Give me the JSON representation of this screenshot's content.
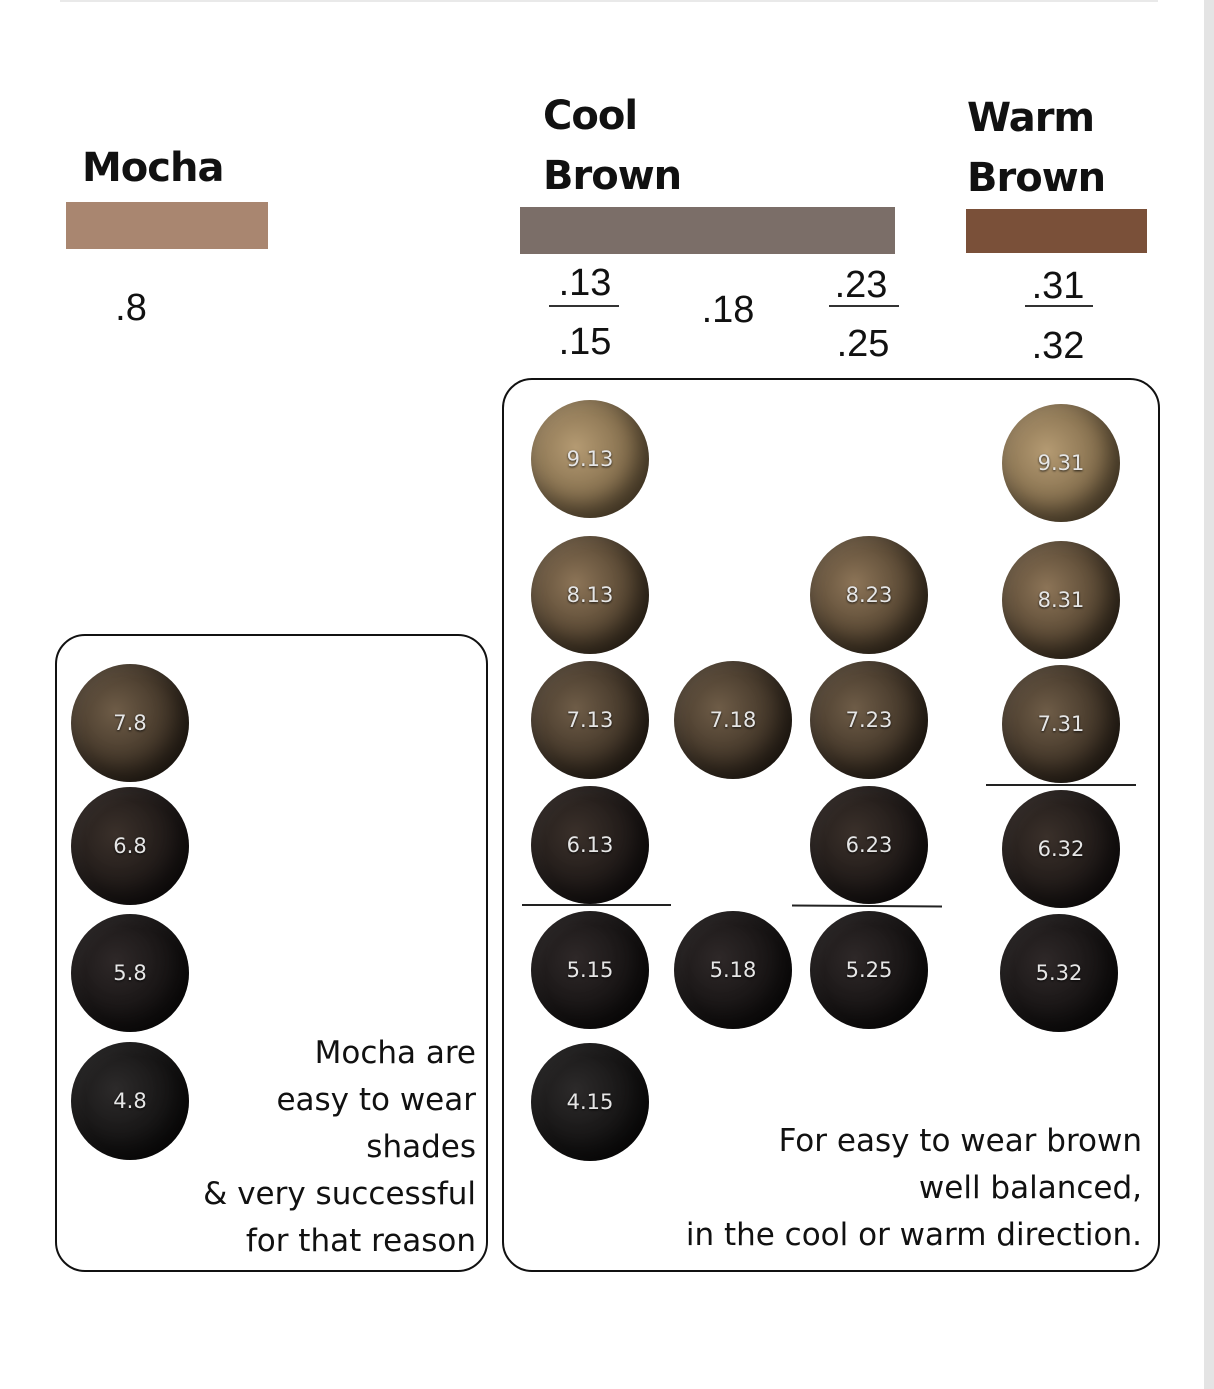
{
  "headers": {
    "mocha": "Mocha",
    "cool_line1": "Cool",
    "cool_line2": "Brown",
    "warm_line1": "Warm",
    "warm_line2": "Brown"
  },
  "colors": {
    "mocha": "#a98670",
    "cool": "#7b6e68",
    "warm": "#7a5039"
  },
  "codes": {
    "mocha": ".8",
    "cool_a_top": ".13",
    "cool_a_bottom": ".15",
    "cool_b": ".18",
    "cool_c_top": ".23",
    "cool_c_bottom": ".25",
    "warm_top": ".31",
    "warm_bottom": ".32"
  },
  "shades": {
    "mocha": [
      "7.8",
      "6.8",
      "5.8",
      "4.8"
    ],
    "cool_13_15": [
      "9.13",
      "8.13",
      "7.13",
      "6.13",
      "5.15",
      "4.15"
    ],
    "cool_18": [
      "7.18",
      "5.18"
    ],
    "cool_23_25": [
      "8.23",
      "7.23",
      "6.23",
      "5.25"
    ],
    "warm_31_32": [
      "9.31",
      "8.31",
      "7.31",
      "6.32",
      "5.32"
    ]
  },
  "notes": {
    "mocha": [
      "Mocha are",
      "easy to wear",
      "shades",
      "& very successful",
      "for that reason"
    ],
    "brown": [
      "For easy to wear brown",
      "well balanced,",
      "in the cool or warm direction."
    ]
  }
}
